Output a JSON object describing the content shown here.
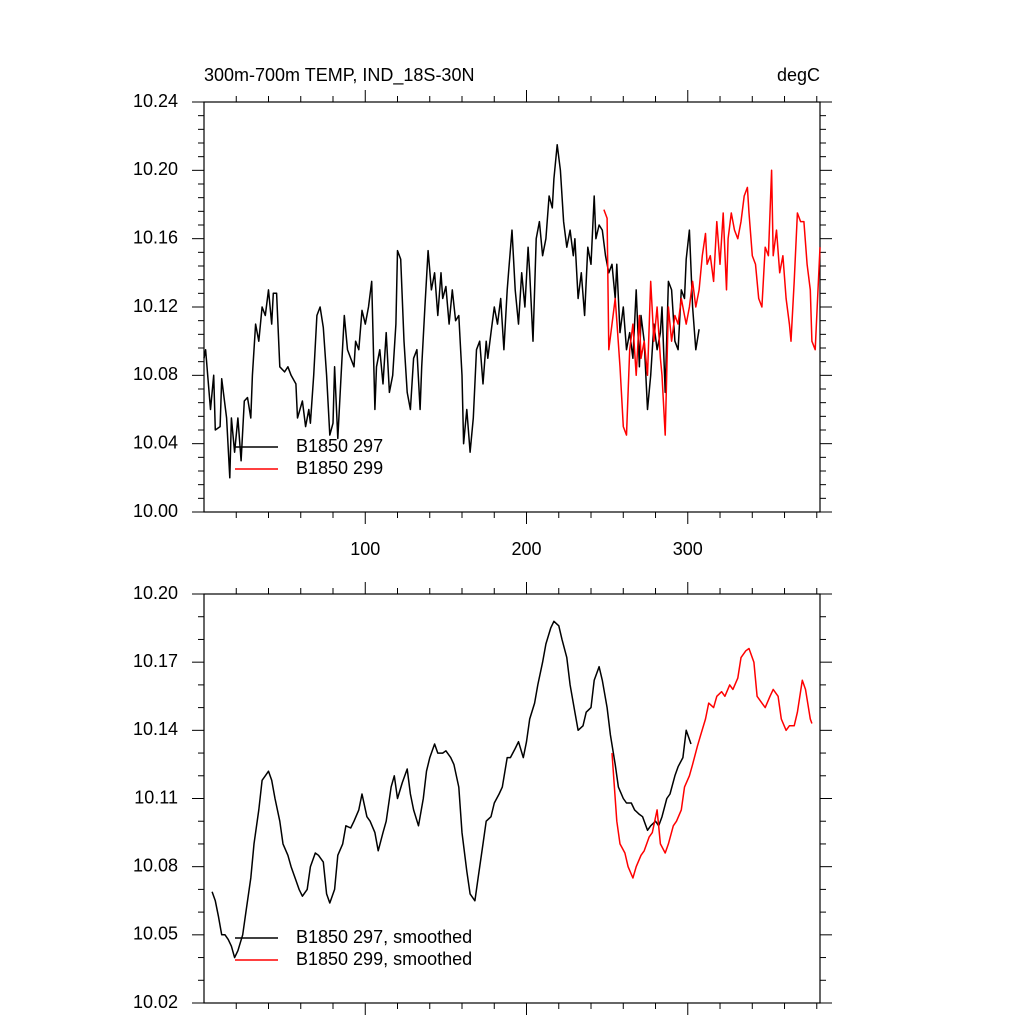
{
  "chart_data": [
    {
      "type": "line",
      "title": "300m-700m TEMP, IND_18S-30N",
      "units": "degC",
      "xlim": [
        0,
        382
      ],
      "xticks": [
        100,
        200,
        300
      ],
      "ylim": [
        10.0,
        10.24
      ],
      "yticks": [
        {
          "value": 10.0,
          "label": "10.00"
        },
        10.04,
        10.08,
        10.12,
        10.16,
        {
          "value": 10.2,
          "label": "10.20"
        },
        10.24
      ],
      "xtick_labels": true,
      "legend": "lower left",
      "series": [
        {
          "name": "B1850 297",
          "color": "#000000",
          "x": [
            0,
            1,
            4,
            6,
            7,
            10,
            11,
            14,
            16,
            17,
            19,
            21,
            23,
            25,
            27,
            29,
            30,
            32,
            34,
            36,
            38,
            40,
            42,
            43,
            45,
            47,
            50,
            52,
            54,
            57,
            58,
            61,
            63,
            65,
            66,
            68,
            70,
            72,
            74,
            76,
            78,
            80,
            81,
            83,
            85,
            87,
            89,
            91,
            93,
            94,
            96,
            98,
            100,
            102,
            104,
            106,
            107,
            109,
            111,
            113,
            115,
            117,
            119,
            120,
            122,
            124,
            126,
            128,
            130,
            132,
            134,
            135,
            137,
            139,
            141,
            143,
            145,
            147,
            148,
            150,
            152,
            154,
            156,
            158,
            160,
            161,
            163,
            165,
            167,
            169,
            171,
            173,
            175,
            176,
            178,
            180,
            182,
            184,
            186,
            188,
            189,
            191,
            193,
            195,
            197,
            199,
            201,
            202,
            204,
            206,
            208,
            210,
            212,
            214,
            216,
            217,
            219,
            221,
            223,
            225,
            227,
            229,
            230,
            232,
            234,
            236,
            238,
            240,
            242,
            243,
            245,
            247,
            249,
            251,
            253,
            255,
            256,
            258,
            260,
            262,
            264,
            266,
            268,
            270,
            271,
            273,
            275,
            277,
            279,
            281,
            283,
            284,
            286,
            288,
            290,
            292,
            294,
            296,
            298,
            299,
            301,
            303,
            305,
            307
          ],
          "values": [
            10.09,
            10.095,
            10.06,
            10.08,
            10.048,
            10.05,
            10.078,
            10.055,
            10.02,
            10.055,
            10.035,
            10.055,
            10.03,
            10.065,
            10.067,
            10.055,
            10.08,
            10.11,
            10.1,
            10.12,
            10.115,
            10.13,
            10.11,
            10.128,
            10.128,
            10.085,
            10.082,
            10.085,
            10.08,
            10.075,
            10.055,
            10.065,
            10.05,
            10.06,
            10.052,
            10.08,
            10.115,
            10.12,
            10.108,
            10.08,
            10.045,
            10.052,
            10.085,
            10.043,
            10.08,
            10.115,
            10.095,
            10.09,
            10.085,
            10.1,
            10.095,
            10.118,
            10.11,
            10.12,
            10.135,
            10.06,
            10.085,
            10.095,
            10.075,
            10.105,
            10.07,
            10.08,
            10.11,
            10.153,
            10.148,
            10.1,
            10.07,
            10.06,
            10.09,
            10.095,
            10.06,
            10.085,
            10.12,
            10.153,
            10.13,
            10.14,
            10.115,
            10.14,
            10.125,
            10.132,
            10.11,
            10.13,
            10.112,
            10.115,
            10.08,
            10.04,
            10.06,
            10.035,
            10.055,
            10.095,
            10.1,
            10.075,
            10.1,
            10.09,
            10.105,
            10.12,
            10.11,
            10.125,
            10.095,
            10.13,
            10.142,
            10.165,
            10.13,
            10.11,
            10.14,
            10.12,
            10.155,
            10.14,
            10.1,
            10.16,
            10.17,
            10.15,
            10.16,
            10.185,
            10.178,
            10.195,
            10.215,
            10.2,
            10.17,
            10.155,
            10.165,
            10.15,
            10.16,
            10.125,
            10.14,
            10.115,
            10.155,
            10.145,
            10.185,
            10.16,
            10.168,
            10.165,
            10.15,
            10.14,
            10.145,
            10.125,
            10.145,
            10.105,
            10.12,
            10.095,
            10.105,
            10.09,
            10.13,
            10.085,
            10.115,
            10.1,
            10.06,
            10.08,
            10.11,
            10.095,
            10.105,
            10.12,
            10.07,
            10.135,
            10.13,
            10.1,
            10.095,
            10.13,
            10.125,
            10.148,
            10.165,
            10.12,
            10.095,
            10.107
          ]
        },
        {
          "name": "B1850 299",
          "color": "#ff0000",
          "x": [
            248,
            250,
            251,
            253,
            255,
            256,
            258,
            260,
            262,
            264,
            266,
            268,
            270,
            271,
            273,
            275,
            277,
            279,
            281,
            283,
            284,
            286,
            288,
            290,
            292,
            294,
            296,
            298,
            299,
            301,
            303,
            305,
            307,
            309,
            311,
            312,
            314,
            316,
            318,
            320,
            322,
            324,
            325,
            327,
            329,
            331,
            333,
            335,
            337,
            338,
            340,
            342,
            344,
            346,
            348,
            350,
            352,
            353,
            355,
            357,
            359,
            361,
            363,
            364,
            366,
            368,
            370,
            372,
            374,
            376,
            377,
            379,
            382
          ],
          "values": [
            10.177,
            10.172,
            10.095,
            10.11,
            10.125,
            10.112,
            10.085,
            10.05,
            10.045,
            10.095,
            10.11,
            10.08,
            10.115,
            10.09,
            10.1,
            10.08,
            10.135,
            10.1,
            10.12,
            10.09,
            10.08,
            10.045,
            10.12,
            10.1,
            10.115,
            10.11,
            10.125,
            10.115,
            10.11,
            10.12,
            10.135,
            10.12,
            10.13,
            10.15,
            10.163,
            10.145,
            10.15,
            10.135,
            10.17,
            10.145,
            10.175,
            10.13,
            10.16,
            10.175,
            10.165,
            10.16,
            10.17,
            10.185,
            10.19,
            10.175,
            10.15,
            10.145,
            10.125,
            10.12,
            10.155,
            10.15,
            10.2,
            10.15,
            10.165,
            10.14,
            10.15,
            10.125,
            10.11,
            10.1,
            10.135,
            10.175,
            10.17,
            10.17,
            10.145,
            10.13,
            10.1,
            10.095,
            10.155
          ]
        }
      ]
    },
    {
      "type": "line",
      "xlim": [
        0,
        382
      ],
      "xticks": [
        100,
        200,
        300
      ],
      "ylim": [
        10.02,
        10.2
      ],
      "yticks": [
        10.02,
        10.05,
        10.08,
        10.11,
        10.14,
        10.17,
        {
          "value": 10.2,
          "label": "10.20"
        }
      ],
      "xtick_labels": false,
      "legend": "lower left",
      "series": [
        {
          "name": "B1850 297, smoothed",
          "color": "#000000",
          "x": [
            5,
            7,
            9,
            11,
            13,
            15,
            17,
            19,
            21,
            24,
            26,
            29,
            31,
            34,
            36,
            38,
            40,
            42,
            44,
            47,
            49,
            52,
            54,
            57,
            59,
            61,
            64,
            66,
            69,
            71,
            74,
            76,
            78,
            81,
            83,
            86,
            88,
            91,
            93,
            96,
            98,
            101,
            103,
            106,
            108,
            111,
            113,
            116,
            118,
            120,
            123,
            126,
            128,
            130,
            133,
            136,
            138,
            140,
            143,
            145,
            148,
            150,
            153,
            155,
            158,
            160,
            163,
            165,
            168,
            170,
            173,
            175,
            178,
            180,
            183,
            185,
            188,
            190,
            193,
            195,
            198,
            200,
            202,
            205,
            207,
            210,
            212,
            215,
            217,
            220,
            222,
            225,
            227,
            230,
            232,
            235,
            237,
            240,
            242,
            245,
            247,
            250,
            252,
            255,
            257,
            260,
            262,
            265,
            267,
            270,
            272,
            275,
            277,
            280,
            282,
            284,
            287,
            289,
            292,
            294,
            297,
            299,
            302
          ],
          "values": [
            10.069,
            10.065,
            10.058,
            10.05,
            10.05,
            10.048,
            10.045,
            10.04,
            10.043,
            10.05,
            10.06,
            10.075,
            10.09,
            10.105,
            10.118,
            10.12,
            10.122,
            10.118,
            10.11,
            10.1,
            10.09,
            10.085,
            10.08,
            10.074,
            10.07,
            10.067,
            10.07,
            10.08,
            10.086,
            10.085,
            10.082,
            10.068,
            10.064,
            10.07,
            10.085,
            10.09,
            10.098,
            10.097,
            10.1,
            10.105,
            10.112,
            10.102,
            10.1,
            10.095,
            10.087,
            10.095,
            10.1,
            10.115,
            10.12,
            10.11,
            10.117,
            10.123,
            10.112,
            10.105,
            10.098,
            10.11,
            10.122,
            10.128,
            10.134,
            10.13,
            10.13,
            10.131,
            10.128,
            10.125,
            10.115,
            10.095,
            10.078,
            10.068,
            10.065,
            10.075,
            10.09,
            10.1,
            10.102,
            10.108,
            10.112,
            10.115,
            10.128,
            10.128,
            10.132,
            10.135,
            10.128,
            10.135,
            10.145,
            10.152,
            10.16,
            10.17,
            10.178,
            10.185,
            10.188,
            10.186,
            10.18,
            10.172,
            10.16,
            10.148,
            10.14,
            10.142,
            10.148,
            10.15,
            10.162,
            10.168,
            10.162,
            10.15,
            10.138,
            10.125,
            10.115,
            10.11,
            10.108,
            10.108,
            10.105,
            10.103,
            10.102,
            10.096,
            10.098,
            10.1,
            10.098,
            10.102,
            10.11,
            10.112,
            10.12,
            10.124,
            10.128,
            10.14,
            10.134
          ]
        },
        {
          "name": "B1850 299, smoothed",
          "color": "#ff0000",
          "x": [
            253,
            256,
            258,
            261,
            263,
            266,
            268,
            271,
            273,
            276,
            278,
            281,
            283,
            286,
            288,
            291,
            293,
            296,
            298,
            301,
            303,
            306,
            308,
            311,
            313,
            316,
            318,
            321,
            323,
            326,
            328,
            331,
            333,
            336,
            338,
            341,
            343,
            346,
            348,
            351,
            353,
            356,
            358,
            361,
            363,
            366,
            368,
            371,
            373,
            376,
            377
          ],
          "values": [
            10.13,
            10.1,
            10.09,
            10.086,
            10.08,
            10.075,
            10.08,
            10.085,
            10.087,
            10.093,
            10.095,
            10.105,
            10.09,
            10.086,
            10.09,
            10.098,
            10.1,
            10.105,
            10.115,
            10.12,
            10.125,
            10.133,
            10.138,
            10.145,
            10.152,
            10.15,
            10.155,
            10.157,
            10.155,
            10.16,
            10.158,
            10.163,
            10.172,
            10.175,
            10.176,
            10.17,
            10.155,
            10.152,
            10.15,
            10.155,
            10.158,
            10.155,
            10.145,
            10.14,
            10.142,
            10.142,
            10.148,
            10.162,
            10.158,
            10.145,
            10.143
          ]
        }
      ]
    }
  ]
}
